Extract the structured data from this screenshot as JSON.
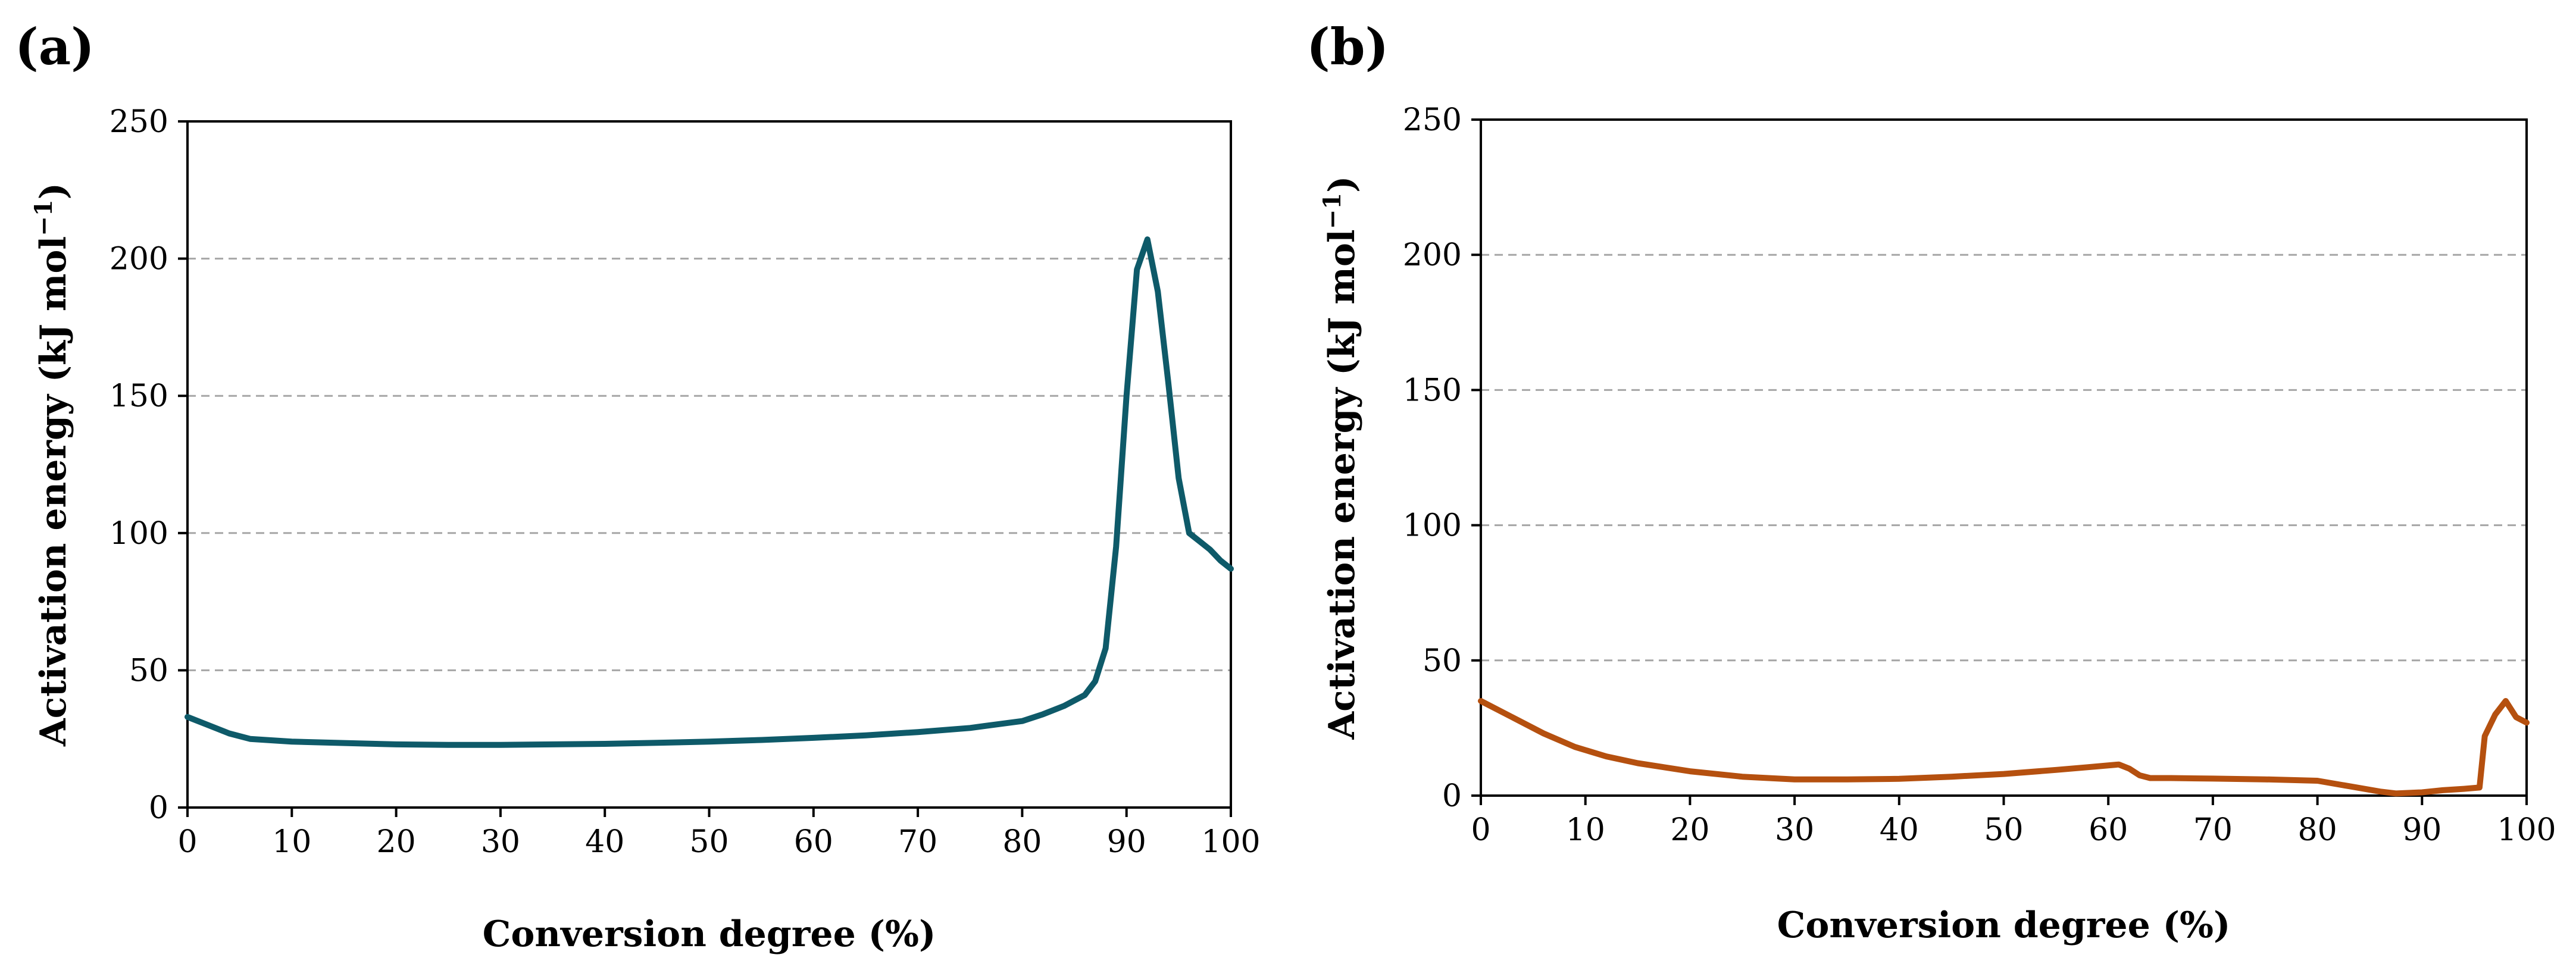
{
  "chart_data": [
    {
      "id": "a",
      "panel_label": "(a)",
      "type": "line",
      "xlabel": "Conversion degree  (%)",
      "ylabel": "Activation energy  (kJ mol",
      "ylabel_sup": "−1",
      "ylabel_end": ")",
      "xlim": [
        0,
        100
      ],
      "ylim": [
        0,
        250
      ],
      "xticks": [
        0,
        10,
        20,
        30,
        40,
        50,
        60,
        70,
        80,
        90,
        100
      ],
      "yticks": [
        0,
        50,
        100,
        150,
        200,
        250
      ],
      "grid": "horizontal dashed",
      "series": [
        {
          "name": "Activation energy",
          "color": "#0e5a69",
          "x": [
            0,
            2,
            4,
            6,
            8,
            10,
            15,
            20,
            25,
            30,
            35,
            40,
            45,
            50,
            55,
            60,
            65,
            70,
            75,
            78,
            80,
            82,
            84,
            86,
            87,
            88,
            89,
            90,
            91,
            92,
            93,
            94,
            95,
            96,
            97,
            98,
            99,
            100
          ],
          "y": [
            33,
            30,
            27,
            25,
            24.5,
            24,
            23.5,
            23,
            22.8,
            22.8,
            23,
            23.2,
            23.6,
            24,
            24.6,
            25.4,
            26.3,
            27.5,
            29,
            30.5,
            31.5,
            34,
            37,
            41,
            46,
            58,
            95,
            150,
            196,
            207,
            188,
            155,
            120,
            100,
            97,
            94,
            90,
            87
          ]
        }
      ]
    },
    {
      "id": "b",
      "panel_label": "(b)",
      "type": "line",
      "xlabel": "Conversion degree  (%)",
      "ylabel": "Activation energy  (kJ mol",
      "ylabel_sup": "−1",
      "ylabel_end": ")",
      "xlim": [
        0,
        100
      ],
      "ylim": [
        0,
        250
      ],
      "xticks": [
        0,
        10,
        20,
        30,
        40,
        50,
        60,
        70,
        80,
        90,
        100
      ],
      "yticks": [
        0,
        50,
        100,
        150,
        200,
        250
      ],
      "grid": "horizontal dashed",
      "series": [
        {
          "name": "Activation energy",
          "color": "#b5500f",
          "x": [
            0,
            3,
            6,
            9,
            12,
            15,
            20,
            25,
            30,
            35,
            40,
            45,
            50,
            55,
            58,
            61,
            62,
            63,
            64,
            66,
            70,
            75,
            80,
            83,
            86,
            87.5,
            90,
            92,
            94,
            95.5,
            96,
            97,
            98,
            99,
            100
          ],
          "y": [
            35,
            29,
            23,
            18,
            14.5,
            12,
            9,
            7,
            6,
            6,
            6.2,
            7,
            8,
            9.5,
            10.5,
            11.5,
            10,
            7.5,
            6.5,
            6.5,
            6.3,
            6,
            5.5,
            3.5,
            1.5,
            0.8,
            1.2,
            2,
            2.5,
            3,
            22,
            30,
            35,
            29,
            27
          ]
        }
      ]
    }
  ]
}
